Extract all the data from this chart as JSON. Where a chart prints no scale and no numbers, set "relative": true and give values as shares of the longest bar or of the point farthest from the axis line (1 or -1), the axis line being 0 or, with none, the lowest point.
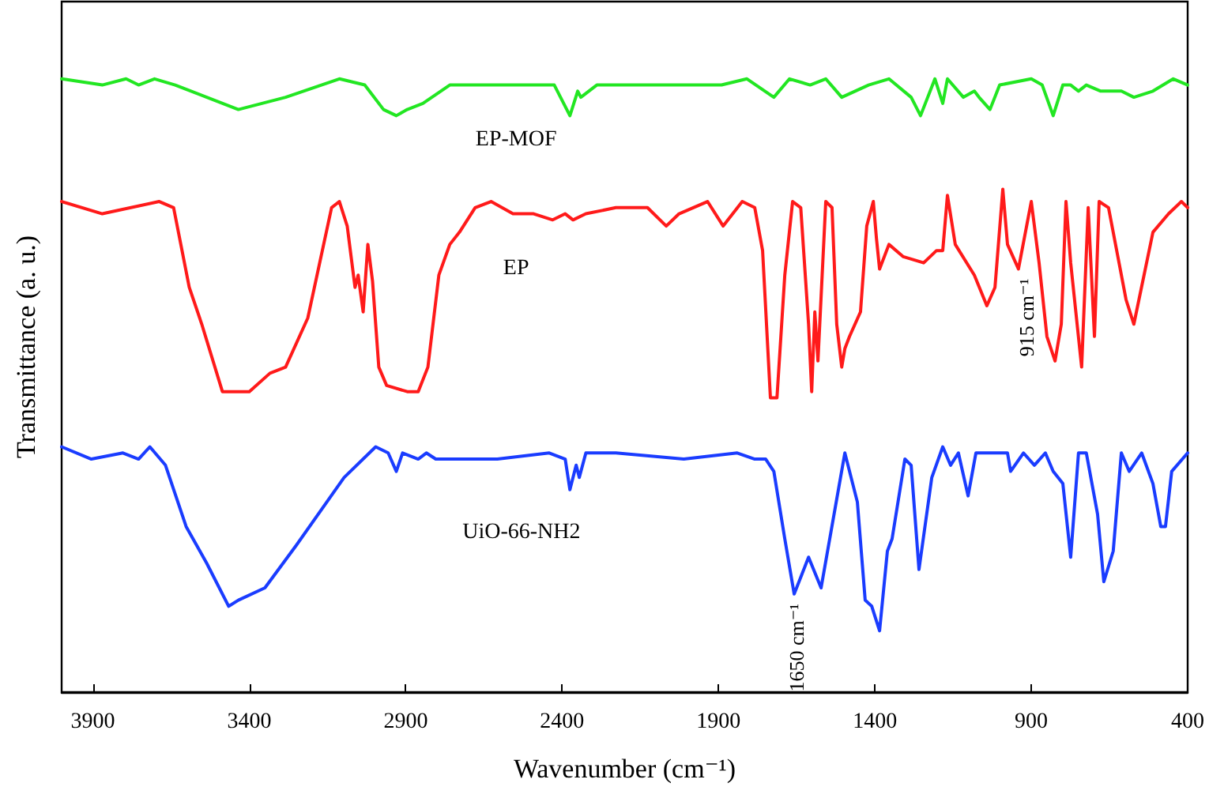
{
  "chart_data": {
    "type": "line",
    "relative": true,
    "xlabel": "Wavenumber (cm⁻¹)",
    "ylabel": "Transmittance (a. u.)",
    "xlim": [
      4000,
      400
    ],
    "xticks": [
      3900,
      3400,
      2900,
      2400,
      1900,
      1400,
      900,
      400
    ],
    "grid": false,
    "legend": false,
    "marker": "none",
    "line_style": "solid",
    "series": [
      {
        "name": "EP-MOF",
        "color": "#22e622",
        "x": [
          4000,
          3870,
          3794,
          3754,
          3703,
          3637,
          3435,
          3284,
          3112,
          3031,
          2971,
          2930,
          2895,
          2845,
          2759,
          2425,
          2375,
          2350,
          2340,
          2289,
          2228,
          1890,
          1809,
          1723,
          1673,
          1607,
          1557,
          1506,
          1420,
          1355,
          1284,
          1254,
          1208,
          1183,
          1168,
          1117,
          1082,
          1067,
          1032,
          1001,
          900,
          865,
          830,
          799,
          774,
          749,
          724,
          678,
          612,
          572,
          511,
          446,
          400
        ],
        "values": [
          1.0,
          0.99,
          1.0,
          0.99,
          1.0,
          0.99,
          0.95,
          0.97,
          1.0,
          0.99,
          0.95,
          0.94,
          0.95,
          0.96,
          0.99,
          0.99,
          0.94,
          0.98,
          0.97,
          0.99,
          0.99,
          0.99,
          1.0,
          0.97,
          1.0,
          0.99,
          1.0,
          0.97,
          0.99,
          1.0,
          0.97,
          0.94,
          1.0,
          0.96,
          1.0,
          0.97,
          0.98,
          0.97,
          0.95,
          0.99,
          1.0,
          0.99,
          0.94,
          0.99,
          0.99,
          0.98,
          0.99,
          0.98,
          0.98,
          0.97,
          0.98,
          1.0,
          0.99
        ]
      },
      {
        "name": "EP",
        "color": "#ff1a1a",
        "x": [
          4000,
          3870,
          3688,
          3642,
          3592,
          3552,
          3486,
          3466,
          3400,
          3334,
          3284,
          3213,
          3137,
          3112,
          3087,
          3062,
          3052,
          3036,
          3021,
          3006,
          2986,
          2961,
          2895,
          2860,
          2829,
          2794,
          2759,
          2728,
          2678,
          2627,
          2557,
          2526,
          2491,
          2430,
          2390,
          2365,
          2324,
          2228,
          2127,
          2067,
          2026,
          1935,
          1885,
          1824,
          1784,
          1759,
          1734,
          1713,
          1688,
          1663,
          1637,
          1612,
          1602,
          1592,
          1582,
          1557,
          1537,
          1522,
          1506,
          1496,
          1481,
          1446,
          1426,
          1405,
          1395,
          1385,
          1355,
          1309,
          1244,
          1203,
          1183,
          1168,
          1143,
          1082,
          1042,
          1016,
          991,
          976,
          941,
          900,
          875,
          850,
          824,
          804,
          789,
          774,
          739,
          718,
          698,
          683,
          653,
          597,
          572,
          511,
          461,
          420,
          400
        ],
        "values": [
          0.8,
          0.78,
          0.8,
          0.79,
          0.66,
          0.6,
          0.49,
          0.49,
          0.49,
          0.52,
          0.53,
          0.61,
          0.79,
          0.8,
          0.76,
          0.66,
          0.68,
          0.62,
          0.73,
          0.67,
          0.53,
          0.5,
          0.49,
          0.49,
          0.53,
          0.68,
          0.73,
          0.75,
          0.79,
          0.8,
          0.78,
          0.78,
          0.78,
          0.77,
          0.78,
          0.77,
          0.78,
          0.79,
          0.79,
          0.76,
          0.78,
          0.8,
          0.76,
          0.8,
          0.79,
          0.72,
          0.48,
          0.48,
          0.68,
          0.8,
          0.79,
          0.6,
          0.49,
          0.62,
          0.54,
          0.8,
          0.79,
          0.6,
          0.53,
          0.56,
          0.58,
          0.62,
          0.76,
          0.8,
          0.74,
          0.69,
          0.73,
          0.71,
          0.7,
          0.72,
          0.72,
          0.81,
          0.73,
          0.68,
          0.63,
          0.66,
          0.82,
          0.73,
          0.69,
          0.8,
          0.7,
          0.58,
          0.54,
          0.6,
          0.8,
          0.7,
          0.53,
          0.79,
          0.58,
          0.8,
          0.79,
          0.64,
          0.6,
          0.75,
          0.78,
          0.8,
          0.79
        ]
      },
      {
        "name": "UiO-66-NH2",
        "color": "#1a3cff",
        "x": [
          4000,
          3905,
          3804,
          3754,
          3718,
          3668,
          3602,
          3536,
          3466,
          3435,
          3350,
          3249,
          3097,
          2996,
          2956,
          2930,
          2910,
          2860,
          2834,
          2804,
          2607,
          2441,
          2390,
          2375,
          2355,
          2345,
          2324,
          2228,
          2011,
          1840,
          1784,
          1749,
          1723,
          1688,
          1658,
          1612,
          1572,
          1496,
          1456,
          1431,
          1410,
          1385,
          1360,
          1345,
          1304,
          1284,
          1259,
          1218,
          1183,
          1158,
          1133,
          1102,
          1077,
          976,
          966,
          925,
          890,
          855,
          830,
          799,
          774,
          749,
          724,
          688,
          668,
          638,
          612,
          587,
          547,
          511,
          486,
          471,
          451,
          400
        ],
        "values": [
          0.4,
          0.38,
          0.39,
          0.38,
          0.4,
          0.37,
          0.27,
          0.21,
          0.14,
          0.15,
          0.17,
          0.24,
          0.35,
          0.4,
          0.39,
          0.36,
          0.39,
          0.38,
          0.39,
          0.38,
          0.38,
          0.39,
          0.38,
          0.33,
          0.37,
          0.35,
          0.39,
          0.39,
          0.38,
          0.39,
          0.38,
          0.38,
          0.36,
          0.25,
          0.16,
          0.22,
          0.17,
          0.39,
          0.31,
          0.15,
          0.14,
          0.1,
          0.23,
          0.25,
          0.38,
          0.37,
          0.2,
          0.35,
          0.4,
          0.37,
          0.39,
          0.32,
          0.39,
          0.39,
          0.36,
          0.39,
          0.37,
          0.39,
          0.36,
          0.34,
          0.22,
          0.39,
          0.39,
          0.29,
          0.18,
          0.23,
          0.39,
          0.36,
          0.39,
          0.34,
          0.27,
          0.27,
          0.36,
          0.39
        ]
      }
    ],
    "annotations": [
      {
        "text": "915 cm⁻¹",
        "x": 915,
        "y": 0.69
      },
      {
        "text": "1650 cm⁻¹",
        "x": 1650,
        "y": 0.16
      }
    ]
  }
}
